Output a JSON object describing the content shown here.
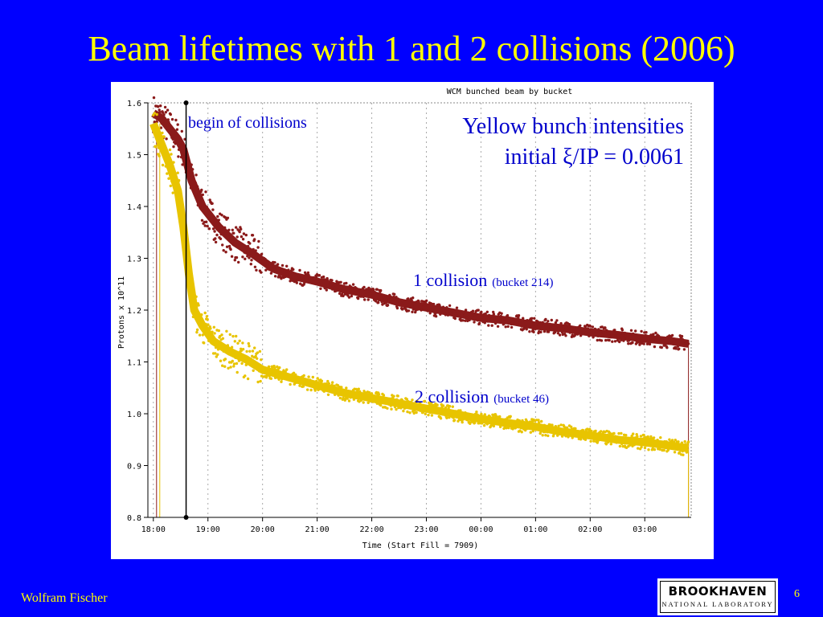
{
  "slide": {
    "title": "Beam lifetimes with 1 and 2 collisions (2006)",
    "author": "Wolfram Fischer",
    "page_number": "6",
    "logo": {
      "line1": "BROOKHAVEN",
      "line2": "NATIONAL LABORATORY"
    }
  },
  "chart_data": {
    "type": "scatter",
    "title": "WCM bunched beam by bucket",
    "xlabel": "Time (Start Fill = 7909)",
    "ylabel": "Protons x 10^11",
    "x_ticks": [
      "18:00",
      "19:00",
      "20:00",
      "21:00",
      "22:00",
      "23:00",
      "00:00",
      "01:00",
      "02:00",
      "03:00"
    ],
    "y_ticks": [
      "0.8",
      "0.9",
      "1.0",
      "1.1",
      "1.2",
      "1.3",
      "1.4",
      "1.5",
      "1.6"
    ],
    "xlim": [
      17.9,
      27.85
    ],
    "ylim": [
      0.8,
      1.6
    ],
    "grid": true,
    "annotations": {
      "collisions_marker": "begin of collisions",
      "header_line1": "Yellow bunch intensities",
      "header_line2": "initial ξ/IP = 0.0061",
      "label_1_main": "1 collision",
      "label_1_sub": "(bucket 214)",
      "label_2_main": "2 collision",
      "label_2_sub": "(bucket 46)"
    },
    "collision_start_hours": 18.6,
    "series": [
      {
        "name": "1 collision (bucket 214)",
        "color": "#8b1a1a",
        "x": [
          18.0,
          18.15,
          18.3,
          18.45,
          18.55,
          18.7,
          18.9,
          19.2,
          19.5,
          19.8,
          20.2,
          20.6,
          21.0,
          21.5,
          22.0,
          22.5,
          23.0,
          23.5,
          24.0,
          24.5,
          25.0,
          25.5,
          26.0,
          26.5,
          27.0,
          27.5,
          27.8
        ],
        "y": [
          1.58,
          1.57,
          1.55,
          1.53,
          1.51,
          1.45,
          1.4,
          1.36,
          1.33,
          1.31,
          1.28,
          1.265,
          1.255,
          1.24,
          1.23,
          1.215,
          1.205,
          1.195,
          1.185,
          1.18,
          1.17,
          1.165,
          1.157,
          1.152,
          1.145,
          1.14,
          1.135
        ]
      },
      {
        "name": "2 collision (bucket 46)",
        "color": "#e8c400",
        "x": [
          18.0,
          18.15,
          18.3,
          18.45,
          18.55,
          18.65,
          18.75,
          18.9,
          19.1,
          19.4,
          19.7,
          20.0,
          20.5,
          21.0,
          21.5,
          22.0,
          22.5,
          23.0,
          23.5,
          24.0,
          24.5,
          25.0,
          25.5,
          26.0,
          26.5,
          27.0,
          27.5,
          27.8
        ],
        "y": [
          1.56,
          1.52,
          1.48,
          1.43,
          1.36,
          1.27,
          1.2,
          1.17,
          1.14,
          1.12,
          1.105,
          1.085,
          1.07,
          1.055,
          1.04,
          1.03,
          1.02,
          1.01,
          1.0,
          0.99,
          0.982,
          0.975,
          0.965,
          0.958,
          0.95,
          0.945,
          0.938,
          0.933
        ]
      }
    ]
  }
}
